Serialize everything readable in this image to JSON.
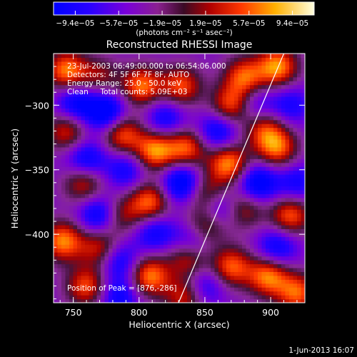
{
  "chart_data": {
    "type": "heatmap",
    "title": "Reconstructed RHESSI Image",
    "xlabel": "Heliocentric X (arcsec)",
    "ylabel": "Heliocentric Y (arcsec)",
    "xlim": [
      735,
      926
    ],
    "ylim": [
      -453,
      -260
    ],
    "x_ticks": [
      750,
      800,
      850,
      900
    ],
    "y_ticks": [
      -300,
      -350,
      -400
    ],
    "colorbar": {
      "unit_label": "(photons cm⁻² s⁻¹ asec⁻²)",
      "range": [
        -9.4e-05,
        9.4e-05
      ],
      "tick_labels": [
        "-9.4e-05",
        "-5.7e-05",
        "-1.9e-05",
        "1.9e-05",
        "5.7e-05",
        "9.4e-05"
      ]
    },
    "annotations": [
      "23-Jul-2003 06:49:00.000 to 06:54:06.000",
      "Detectors: 4F 5F 6F 7F 8F, AUTO",
      "Energy Range: 25.0 - 50.0 keV",
      "Clean     Total counts: 5.09E+03"
    ],
    "peak_label": "Position of Peak = [876,-286]",
    "limb_line": {
      "x": [
        830,
        910
      ],
      "y": [
        -453,
        -260
      ]
    },
    "peak_sources": [
      {
        "x": 745,
        "y": -273,
        "v": 0.95
      },
      {
        "x": 770,
        "y": -278,
        "v": 0.5
      },
      {
        "x": 802,
        "y": -285,
        "v": 0.9
      },
      {
        "x": 832,
        "y": -285,
        "v": 0.8
      },
      {
        "x": 870,
        "y": -300,
        "v": 0.85
      },
      {
        "x": 905,
        "y": -270,
        "v": 1.0
      },
      {
        "x": 880,
        "y": -278,
        "v": 0.85
      },
      {
        "x": 745,
        "y": -320,
        "v": 0.7
      },
      {
        "x": 787,
        "y": -322,
        "v": 0.85
      },
      {
        "x": 812,
        "y": -335,
        "v": 1.0
      },
      {
        "x": 836,
        "y": -333,
        "v": 0.85
      },
      {
        "x": 868,
        "y": -345,
        "v": 1.0
      },
      {
        "x": 905,
        "y": -333,
        "v": 0.85
      },
      {
        "x": 895,
        "y": -318,
        "v": 0.7
      },
      {
        "x": 758,
        "y": -360,
        "v": 0.7
      },
      {
        "x": 785,
        "y": -385,
        "v": 0.6
      },
      {
        "x": 808,
        "y": -375,
        "v": 0.9
      },
      {
        "x": 850,
        "y": -368,
        "v": 0.7
      },
      {
        "x": 850,
        "y": -395,
        "v": 0.85
      },
      {
        "x": 880,
        "y": -380,
        "v": 0.6
      },
      {
        "x": 915,
        "y": -385,
        "v": 0.85
      },
      {
        "x": 742,
        "y": -405,
        "v": 0.95
      },
      {
        "x": 770,
        "y": -410,
        "v": 0.7
      },
      {
        "x": 808,
        "y": -432,
        "v": 0.95
      },
      {
        "x": 838,
        "y": -417,
        "v": 0.8
      },
      {
        "x": 870,
        "y": -425,
        "v": 0.85
      },
      {
        "x": 898,
        "y": -432,
        "v": 0.95
      },
      {
        "x": 920,
        "y": -445,
        "v": 0.85
      },
      {
        "x": 760,
        "y": -440,
        "v": 0.8
      },
      {
        "x": 835,
        "y": -448,
        "v": 0.7
      },
      {
        "x": 752,
        "y": -298,
        "v": -0.7
      },
      {
        "x": 775,
        "y": -305,
        "v": -0.9
      },
      {
        "x": 820,
        "y": -310,
        "v": -0.6
      },
      {
        "x": 860,
        "y": -320,
        "v": -0.7
      },
      {
        "x": 888,
        "y": -300,
        "v": -0.5
      },
      {
        "x": 760,
        "y": -342,
        "v": -0.7
      },
      {
        "x": 790,
        "y": -350,
        "v": -0.55
      },
      {
        "x": 833,
        "y": -360,
        "v": -0.95
      },
      {
        "x": 860,
        "y": -380,
        "v": -0.6
      },
      {
        "x": 890,
        "y": -360,
        "v": -0.85
      },
      {
        "x": 770,
        "y": -385,
        "v": -0.8
      },
      {
        "x": 812,
        "y": -398,
        "v": -0.6
      },
      {
        "x": 842,
        "y": -405,
        "v": -0.85
      },
      {
        "x": 905,
        "y": -410,
        "v": -0.65
      },
      {
        "x": 785,
        "y": -420,
        "v": -0.6
      },
      {
        "x": 850,
        "y": -440,
        "v": -0.55
      },
      {
        "x": 785,
        "y": -448,
        "v": -0.6
      },
      {
        "x": 915,
        "y": -300,
        "v": -0.5
      },
      {
        "x": 920,
        "y": -360,
        "v": -0.55
      }
    ]
  },
  "footer": {
    "timestamp": "1-Jun-2013 16:07"
  }
}
